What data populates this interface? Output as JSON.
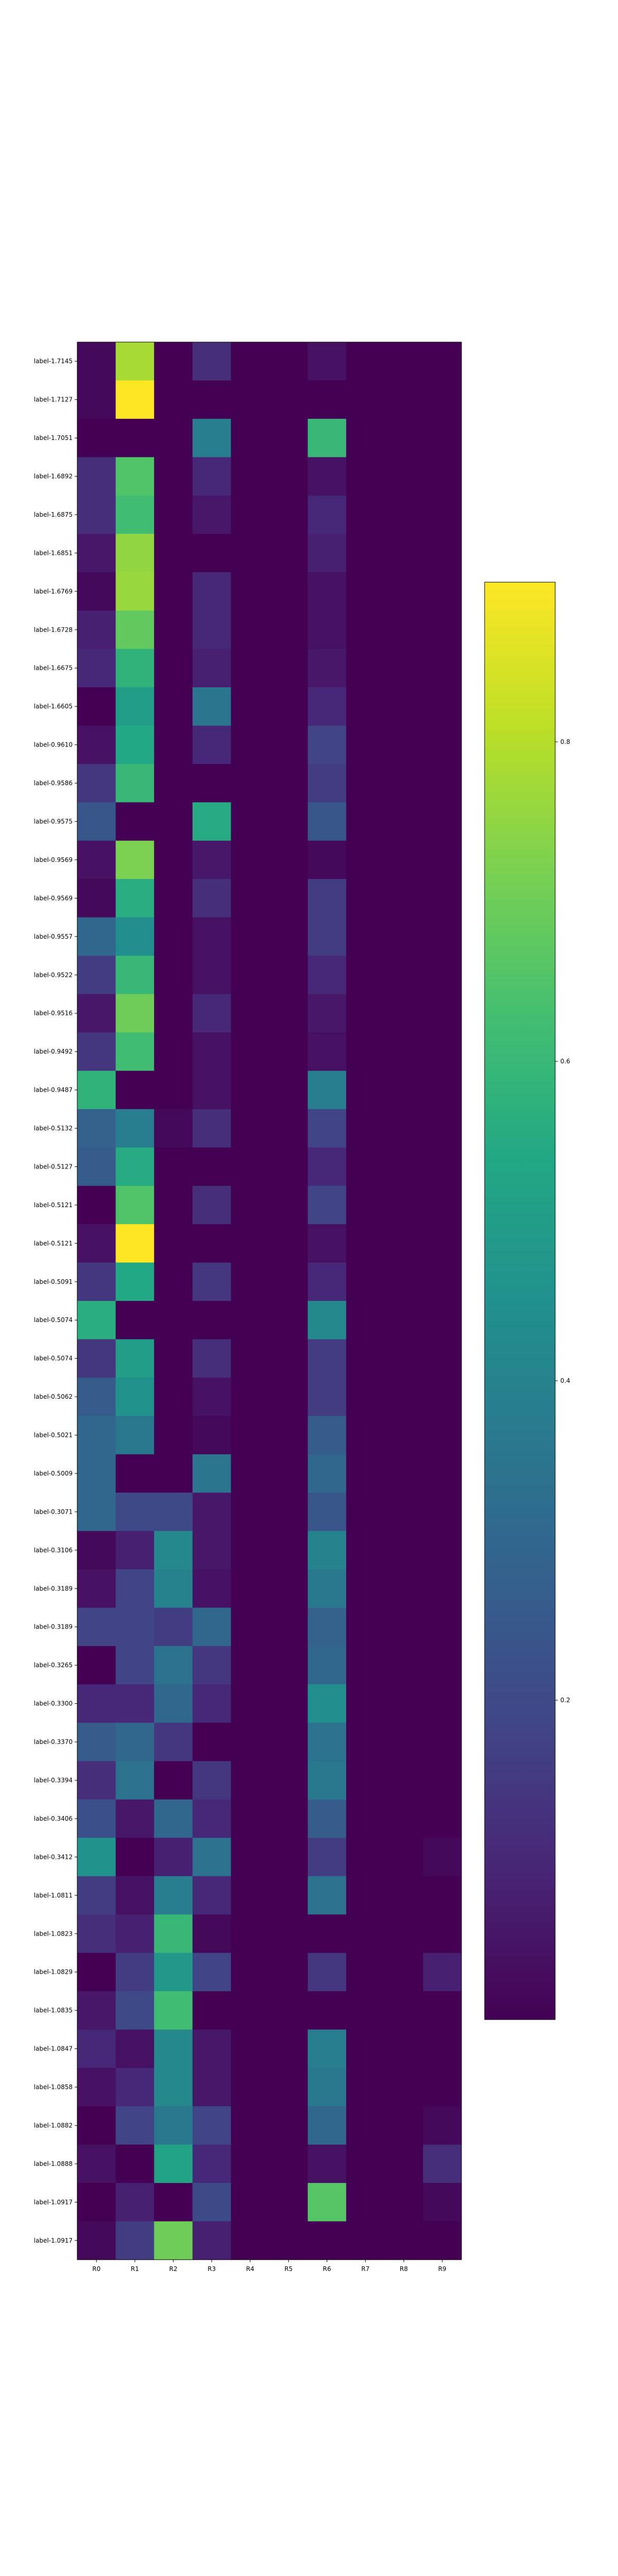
{
  "chart_data": {
    "type": "heatmap",
    "title": "",
    "xlabel": "",
    "ylabel": "",
    "columns": [
      "R0",
      "R1",
      "R2",
      "R3",
      "R4",
      "R5",
      "R6",
      "R7",
      "R8",
      "R9"
    ],
    "rows": [
      "label-1.7145",
      "label-1.7127",
      "label-1.7051",
      "label-1.6892",
      "label-1.6875",
      "label-1.6851",
      "label-1.6769",
      "label-1.6728",
      "label-1.6675",
      "label-1.6605",
      "label-0.9610",
      "label-0.9586",
      "label-0.9575",
      "label-0.9569",
      "label-0.9569",
      "label-0.9557",
      "label-0.9522",
      "label-0.9516",
      "label-0.9492",
      "label-0.9487",
      "label-0.5132",
      "label-0.5127",
      "label-0.5121",
      "label-0.5121",
      "label-0.5091",
      "label-0.5074",
      "label-0.5074",
      "label-0.5062",
      "label-0.5021",
      "label-0.5009",
      "label-0.3071",
      "label-0.3106",
      "label-0.3189",
      "label-0.3189",
      "label-0.3265",
      "label-0.3300",
      "label-0.3370",
      "label-0.3394",
      "label-0.3406",
      "label-0.3412",
      "label-1.0811",
      "label-1.0823",
      "label-1.0829",
      "label-1.0835",
      "label-1.0847",
      "label-1.0858",
      "label-1.0882",
      "label-1.0888",
      "label-1.0917",
      "label-1.0917"
    ],
    "values": [
      [
        0.02,
        0.78,
        0,
        0.12,
        0,
        0,
        0.04,
        0,
        0,
        0
      ],
      [
        0.02,
        0.98,
        0,
        0,
        0,
        0,
        0,
        0,
        0,
        0
      ],
      [
        0,
        0,
        0,
        0.38,
        0,
        0,
        0.6,
        0,
        0,
        0
      ],
      [
        0.12,
        0.65,
        0,
        0.1,
        0,
        0,
        0.04,
        0,
        0,
        0
      ],
      [
        0.12,
        0.62,
        0,
        0.06,
        0,
        0,
        0.1,
        0,
        0,
        0
      ],
      [
        0.06,
        0.75,
        0,
        0,
        0,
        0,
        0.08,
        0,
        0,
        0
      ],
      [
        0.02,
        0.76,
        0,
        0.1,
        0,
        0,
        0.04,
        0,
        0,
        0
      ],
      [
        0.08,
        0.68,
        0,
        0.1,
        0,
        0,
        0.04,
        0,
        0,
        0
      ],
      [
        0.1,
        0.58,
        0,
        0.08,
        0,
        0,
        0.06,
        0,
        0,
        0
      ],
      [
        0,
        0.5,
        0,
        0.35,
        0,
        0,
        0.1,
        0,
        0,
        0
      ],
      [
        0.04,
        0.54,
        0,
        0.1,
        0,
        0,
        0.18,
        0,
        0,
        0
      ],
      [
        0.14,
        0.6,
        0,
        0,
        0,
        0,
        0.16,
        0,
        0,
        0
      ],
      [
        0.24,
        0,
        0,
        0.55,
        0,
        0,
        0.24,
        0,
        0,
        0
      ],
      [
        0.04,
        0.72,
        0,
        0.06,
        0,
        0,
        0.02,
        0,
        0,
        0
      ],
      [
        0.02,
        0.56,
        0,
        0.12,
        0,
        0,
        0.16,
        0,
        0,
        0
      ],
      [
        0.3,
        0.44,
        0,
        0.04,
        0,
        0,
        0.16,
        0,
        0,
        0
      ],
      [
        0.16,
        0.6,
        0,
        0.04,
        0,
        0,
        0.1,
        0,
        0,
        0
      ],
      [
        0.06,
        0.7,
        0,
        0.1,
        0,
        0,
        0.06,
        0,
        0,
        0
      ],
      [
        0.14,
        0.62,
        0,
        0.04,
        0,
        0,
        0.04,
        0,
        0,
        0
      ],
      [
        0.58,
        0,
        0,
        0.04,
        0,
        0,
        0.38,
        0,
        0,
        0
      ],
      [
        0.28,
        0.38,
        0.02,
        0.12,
        0,
        0,
        0.18,
        0,
        0,
        0
      ],
      [
        0.26,
        0.55,
        0,
        0,
        0,
        0,
        0.1,
        0,
        0,
        0
      ],
      [
        0,
        0.65,
        0,
        0.12,
        0,
        0,
        0.18,
        0,
        0,
        0
      ],
      [
        0.04,
        0.9,
        0,
        0,
        0,
        0,
        0.04,
        0,
        0,
        0
      ],
      [
        0.14,
        0.54,
        0,
        0.14,
        0,
        0,
        0.1,
        0,
        0,
        0
      ],
      [
        0.56,
        0,
        0,
        0,
        0,
        0,
        0.42,
        0,
        0,
        0
      ],
      [
        0.14,
        0.5,
        0,
        0.12,
        0,
        0,
        0.16,
        0,
        0,
        0
      ],
      [
        0.26,
        0.46,
        0,
        0.04,
        0,
        0,
        0.16,
        0,
        0,
        0
      ],
      [
        0.3,
        0.36,
        0,
        0.02,
        0,
        0,
        0.26,
        0,
        0,
        0
      ],
      [
        0.3,
        0,
        0,
        0.35,
        0,
        0,
        0.3,
        0,
        0,
        0
      ],
      [
        0.3,
        0.2,
        0.2,
        0.06,
        0,
        0,
        0.24,
        0,
        0,
        0
      ],
      [
        0.02,
        0.08,
        0.42,
        0.06,
        0,
        0,
        0.4,
        0,
        0,
        0
      ],
      [
        0.04,
        0.18,
        0.4,
        0.04,
        0,
        0,
        0.36,
        0,
        0,
        0
      ],
      [
        0.18,
        0.18,
        0.16,
        0.3,
        0,
        0,
        0.28,
        0,
        0,
        0
      ],
      [
        0,
        0.18,
        0.34,
        0.14,
        0,
        0,
        0.3,
        0,
        0,
        0
      ],
      [
        0.1,
        0.1,
        0.3,
        0.1,
        0,
        0,
        0.44,
        0,
        0,
        0
      ],
      [
        0.26,
        0.3,
        0.14,
        0,
        0,
        0,
        0.34,
        0,
        0,
        0
      ],
      [
        0.12,
        0.34,
        0,
        0.14,
        0,
        0,
        0.36,
        0,
        0,
        0
      ],
      [
        0.22,
        0.06,
        0.3,
        0.1,
        0,
        0,
        0.26,
        0,
        0,
        0
      ],
      [
        0.46,
        0,
        0.08,
        0.34,
        0,
        0,
        0.16,
        0,
        0,
        0.02
      ],
      [
        0.16,
        0.04,
        0.38,
        0.1,
        0,
        0,
        0.34,
        0,
        0,
        0
      ],
      [
        0.12,
        0.08,
        0.6,
        0.02,
        0,
        0,
        0,
        0,
        0,
        0
      ],
      [
        0,
        0.16,
        0.48,
        0.18,
        0,
        0,
        0.14,
        0,
        0,
        0.08
      ],
      [
        0.06,
        0.2,
        0.62,
        0,
        0,
        0,
        0,
        0,
        0,
        0
      ],
      [
        0.1,
        0.04,
        0.42,
        0.06,
        0,
        0,
        0.38,
        0,
        0,
        0
      ],
      [
        0.04,
        0.1,
        0.42,
        0.06,
        0,
        0,
        0.36,
        0,
        0,
        0
      ],
      [
        0,
        0.18,
        0.36,
        0.18,
        0,
        0,
        0.3,
        0,
        0,
        0.02
      ],
      [
        0.04,
        0,
        0.52,
        0.1,
        0,
        0,
        0.04,
        0,
        0,
        0.12
      ],
      [
        0,
        0.08,
        0,
        0.2,
        0,
        0,
        0.66,
        0,
        0,
        0.02
      ],
      [
        0.02,
        0.16,
        0.7,
        0.08,
        0,
        0,
        0,
        0,
        0,
        0
      ]
    ],
    "colormap": "viridis",
    "colorbar": {
      "range": [
        0,
        0.9
      ],
      "ticks": [
        0.2,
        0.4,
        0.6,
        0.8
      ],
      "tick_labels": [
        "0.2",
        "0.4",
        "0.6",
        "0.8"
      ]
    }
  }
}
